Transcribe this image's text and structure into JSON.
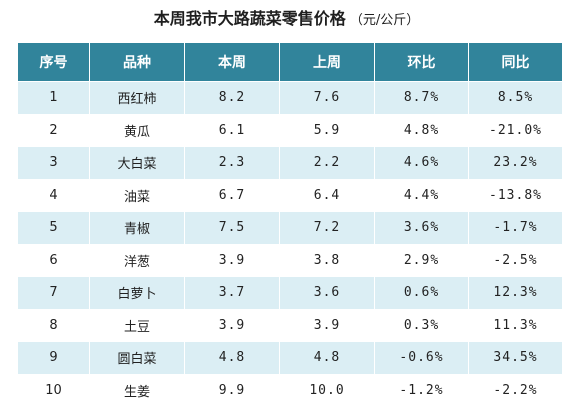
{
  "title": {
    "main": "本周我市大路蔬菜零售价格",
    "unit": "（元/公斤）"
  },
  "colors": {
    "header_bg": "#31849b",
    "stripe": "#dbeef4"
  },
  "table": {
    "headers": [
      "序号",
      "品种",
      "本周",
      "上周",
      "环比",
      "同比"
    ],
    "rows": [
      [
        "1",
        "西红柿",
        "8.2",
        "7.6",
        "8.7%",
        "8.5%"
      ],
      [
        "2",
        "黄瓜",
        "6.1",
        "5.9",
        "4.8%",
        "-21.0%"
      ],
      [
        "3",
        "大白菜",
        "2.3",
        "2.2",
        "4.6%",
        "23.2%"
      ],
      [
        "4",
        "油菜",
        "6.7",
        "6.4",
        "4.4%",
        "-13.8%"
      ],
      [
        "5",
        "青椒",
        "7.5",
        "7.2",
        "3.6%",
        "-1.7%"
      ],
      [
        "6",
        "洋葱",
        "3.9",
        "3.8",
        "2.9%",
        "-2.5%"
      ],
      [
        "7",
        "白萝卜",
        "3.7",
        "3.6",
        "0.6%",
        "12.3%"
      ],
      [
        "8",
        "土豆",
        "3.9",
        "3.9",
        "0.3%",
        "11.3%"
      ],
      [
        "9",
        "圆白菜",
        "4.8",
        "4.8",
        "-0.6%",
        "34.5%"
      ],
      [
        "10",
        "生姜",
        "9.9",
        "10.0",
        "-1.2%",
        "-2.2%"
      ]
    ]
  }
}
